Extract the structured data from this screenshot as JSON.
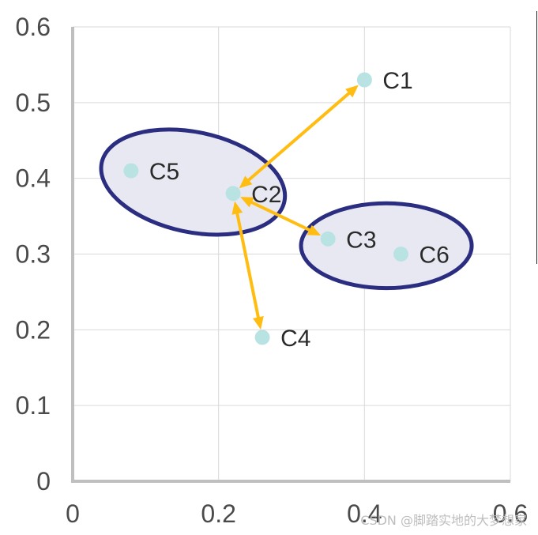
{
  "chart_data": {
    "type": "scatter",
    "xlim": [
      0,
      0.6
    ],
    "ylim": [
      0,
      0.6
    ],
    "x_ticks": [
      "0",
      "0.2",
      "0.4",
      "0.6"
    ],
    "y_ticks": [
      "0",
      "0.1",
      "0.2",
      "0.3",
      "0.4",
      "0.5",
      "0.6"
    ],
    "grid": true,
    "points": [
      {
        "label": "C1",
        "x": 0.4,
        "y": 0.53
      },
      {
        "label": "C2",
        "x": 0.22,
        "y": 0.38
      },
      {
        "label": "C3",
        "x": 0.35,
        "y": 0.32
      },
      {
        "label": "C4",
        "x": 0.26,
        "y": 0.19
      },
      {
        "label": "C5",
        "x": 0.08,
        "y": 0.41
      },
      {
        "label": "C6",
        "x": 0.45,
        "y": 0.3
      }
    ],
    "clusters": [
      {
        "members": [
          "C5",
          "C2"
        ],
        "cx": 0.165,
        "cy": 0.395,
        "rx": 0.128,
        "ry": 0.066,
        "angle_deg": 12
      },
      {
        "members": [
          "C3",
          "C6"
        ],
        "cx": 0.43,
        "cy": 0.311,
        "rx": 0.117,
        "ry": 0.056,
        "angle_deg": 0
      }
    ],
    "arrows": [
      {
        "from": "C2",
        "to": "C1"
      },
      {
        "from": "C2",
        "to": "C3"
      },
      {
        "from": "C2",
        "to": "C4"
      }
    ],
    "colors": {
      "point": "#b9e3e3",
      "ellipse_stroke": "#2b2d80",
      "ellipse_fill": "#e8e8f3",
      "arrow": "#ffbd12",
      "grid": "#d9d9d9",
      "axis": "#bfbfbf"
    }
  },
  "watermark": "CSDN @脚踏实地的大梦想家"
}
